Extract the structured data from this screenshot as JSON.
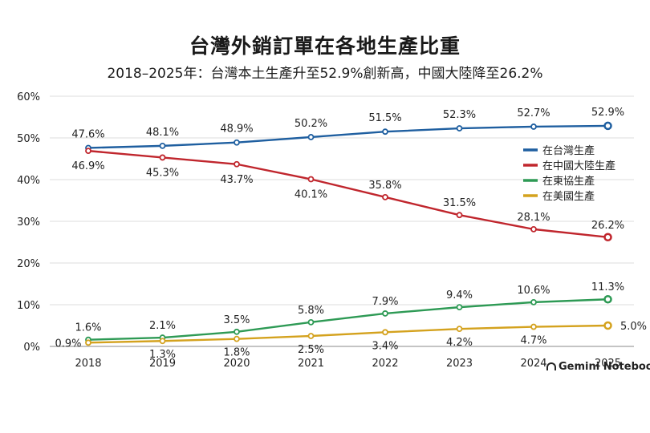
{
  "chart_data": {
    "type": "line",
    "title": "台灣外銷訂單在各地生產比重",
    "subtitle": "2018–2025年：台灣本土生產升至52.9%創新高，中國大陸降至26.2%",
    "categories": [
      "2018",
      "2019",
      "2020",
      "2021",
      "2022",
      "2023",
      "2024",
      "2025"
    ],
    "ylim": [
      0,
      60
    ],
    "yticks": [
      "0%",
      "10%",
      "20%",
      "30%",
      "40%",
      "50%",
      "60%"
    ],
    "grid": true,
    "legend_position": "right",
    "series": [
      {
        "name": "在台灣生產",
        "color": "#1f5fa0",
        "values": [
          47.6,
          48.1,
          48.9,
          50.2,
          51.5,
          52.3,
          52.7,
          52.9
        ],
        "labels": [
          "47.6%",
          "48.1%",
          "48.9%",
          "50.2%",
          "51.5%",
          "52.3%",
          "52.7%",
          "52.9%"
        ]
      },
      {
        "name": "在中國大陸生產",
        "color": "#c0262d",
        "values": [
          46.9,
          45.3,
          43.7,
          40.1,
          35.8,
          31.5,
          28.1,
          26.2
        ],
        "labels": [
          "46.9%",
          "45.3%",
          "43.7%",
          "40.1%",
          "35.8%",
          "31.5%",
          "28.1%",
          "26.2%"
        ]
      },
      {
        "name": "在東協生產",
        "color": "#2e9a55",
        "values": [
          1.6,
          2.1,
          3.5,
          5.8,
          7.9,
          9.4,
          10.6,
          11.3
        ],
        "labels": [
          "1.6%",
          "2.1%",
          "3.5%",
          "5.8%",
          "7.9%",
          "9.4%",
          "10.6%",
          "11.3%"
        ]
      },
      {
        "name": "在美國生產",
        "color": "#d4a21e",
        "values": [
          0.9,
          1.3,
          1.8,
          2.5,
          3.4,
          4.2,
          4.7,
          5.0
        ],
        "labels": [
          "0.9%",
          "1.3%",
          "1.8%",
          "2.5%",
          "3.4%",
          "4.2%",
          "4.7%",
          "5.0%"
        ]
      }
    ]
  },
  "watermark": "Gemini Notebook"
}
